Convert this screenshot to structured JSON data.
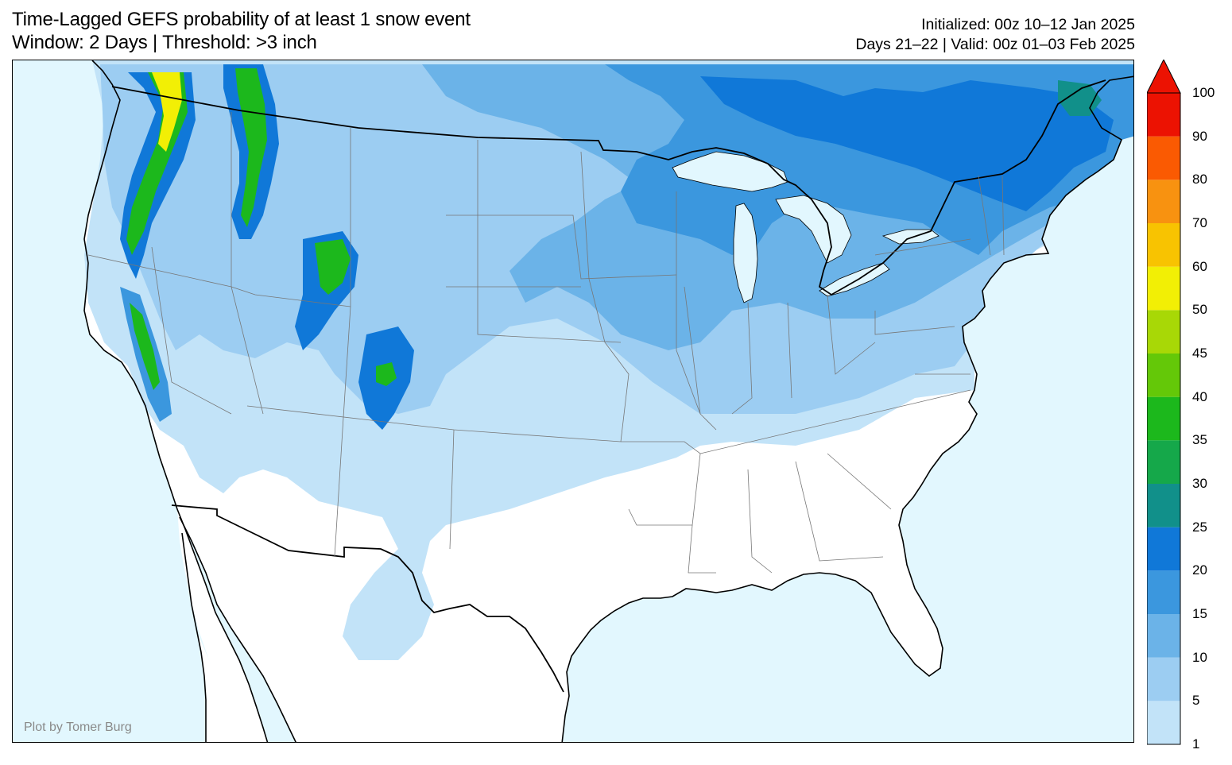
{
  "title": {
    "line1": "Time-Lagged GEFS probability of at least 1 snow event",
    "line2": "Window: 2 Days | Threshold: >3 inch"
  },
  "info": {
    "line1": "Initialized: 00z 10–12 Jan 2025",
    "line2": "Days 21–22 | Valid: 00z 01–03 Feb 2025"
  },
  "credit": "Plot by Tomer Burg",
  "colorbar": {
    "levels": [
      "1",
      "5",
      "10",
      "15",
      "20",
      "25",
      "30",
      "35",
      "40",
      "45",
      "50",
      "60",
      "70",
      "80",
      "90",
      "100"
    ],
    "colors": [
      "#c2e3f8",
      "#9ccdf2",
      "#6bb3e8",
      "#3b97de",
      "#1078d8",
      "#11908a",
      "#15a84a",
      "#1cb81c",
      "#64c808",
      "#a8d806",
      "#f2ef05",
      "#f8c301",
      "#f89210",
      "#fa5a02",
      "#ec1202"
    ],
    "extend_color": "#ec1202"
  },
  "map": {
    "ocean_color": "#e2f7fe",
    "land_color": "#ffffff",
    "coast_color": "#000000",
    "state_line_color": "#777777"
  }
}
